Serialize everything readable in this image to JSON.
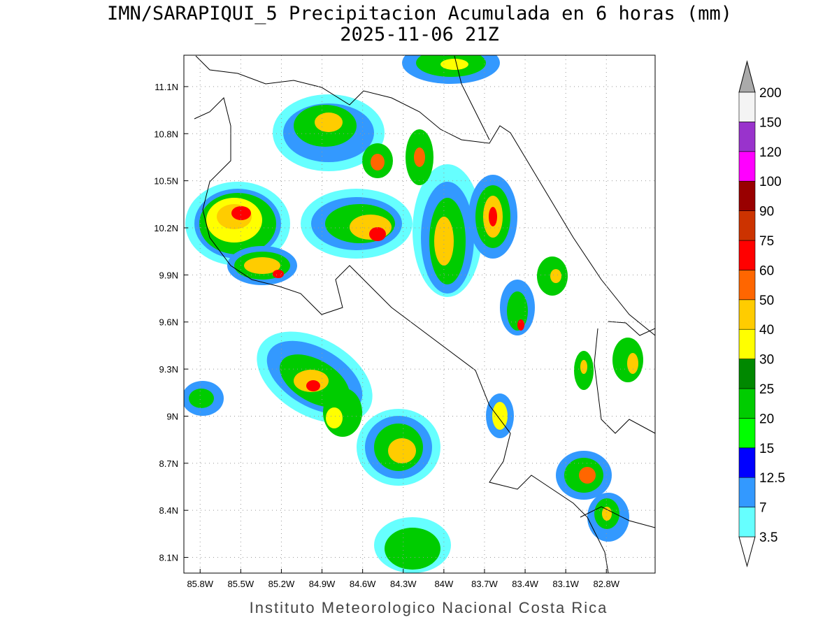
{
  "title": "IMN/SARAPIQUI_5 Precipitacion Acumulada en 6 horas (mm)",
  "subtitle": "2025-11-06 21Z",
  "map": {
    "xlim": [
      -85.92,
      -82.44
    ],
    "ylim": [
      8.0,
      11.3
    ],
    "xticks": [
      {
        "value": -85.8,
        "label": "85.8W"
      },
      {
        "value": -85.5,
        "label": "85.5W"
      },
      {
        "value": -85.2,
        "label": "85.2W"
      },
      {
        "value": -84.9,
        "label": "84.9W"
      },
      {
        "value": -84.6,
        "label": "84.6W"
      },
      {
        "value": -84.3,
        "label": "84.3W"
      },
      {
        "value": -84.0,
        "label": "84W"
      },
      {
        "value": -83.7,
        "label": "83.7W"
      },
      {
        "value": -83.4,
        "label": "83.4W"
      },
      {
        "value": -83.1,
        "label": "83.1W"
      },
      {
        "value": -82.8,
        "label": "82.8W"
      }
    ],
    "yticks": [
      {
        "value": 8.1,
        "label": "8.1N"
      },
      {
        "value": 8.4,
        "label": "8.4N"
      },
      {
        "value": 8.7,
        "label": "8.7N"
      },
      {
        "value": 9.0,
        "label": "9N"
      },
      {
        "value": 9.3,
        "label": "9.3N"
      },
      {
        "value": 9.6,
        "label": "9.6N"
      },
      {
        "value": 9.9,
        "label": "9.9N"
      },
      {
        "value": 10.2,
        "label": "10.2N"
      },
      {
        "value": 10.5,
        "label": "10.5N"
      },
      {
        "value": 10.8,
        "label": "10.8N"
      },
      {
        "value": 11.1,
        "label": "11.1N"
      }
    ],
    "grid": true
  },
  "colorbar": {
    "levels": [
      3.5,
      7,
      12.5,
      15,
      20,
      25,
      30,
      40,
      50,
      60,
      75,
      90,
      100,
      120,
      150,
      200
    ],
    "colors": [
      "#66ffff",
      "#3399ff",
      "#0000ff",
      "#00ff00",
      "#00cc00",
      "#008800",
      "#ffff00",
      "#ffcc00",
      "#ff6600",
      "#ff0000",
      "#cc3300",
      "#990000",
      "#ff00ff",
      "#9933cc",
      "#f4f4f4"
    ],
    "under_color": "#ffffff",
    "over_color": "#aaaaaa"
  },
  "footer": "Instituto Meteorologico Nacional Costa Rica"
}
